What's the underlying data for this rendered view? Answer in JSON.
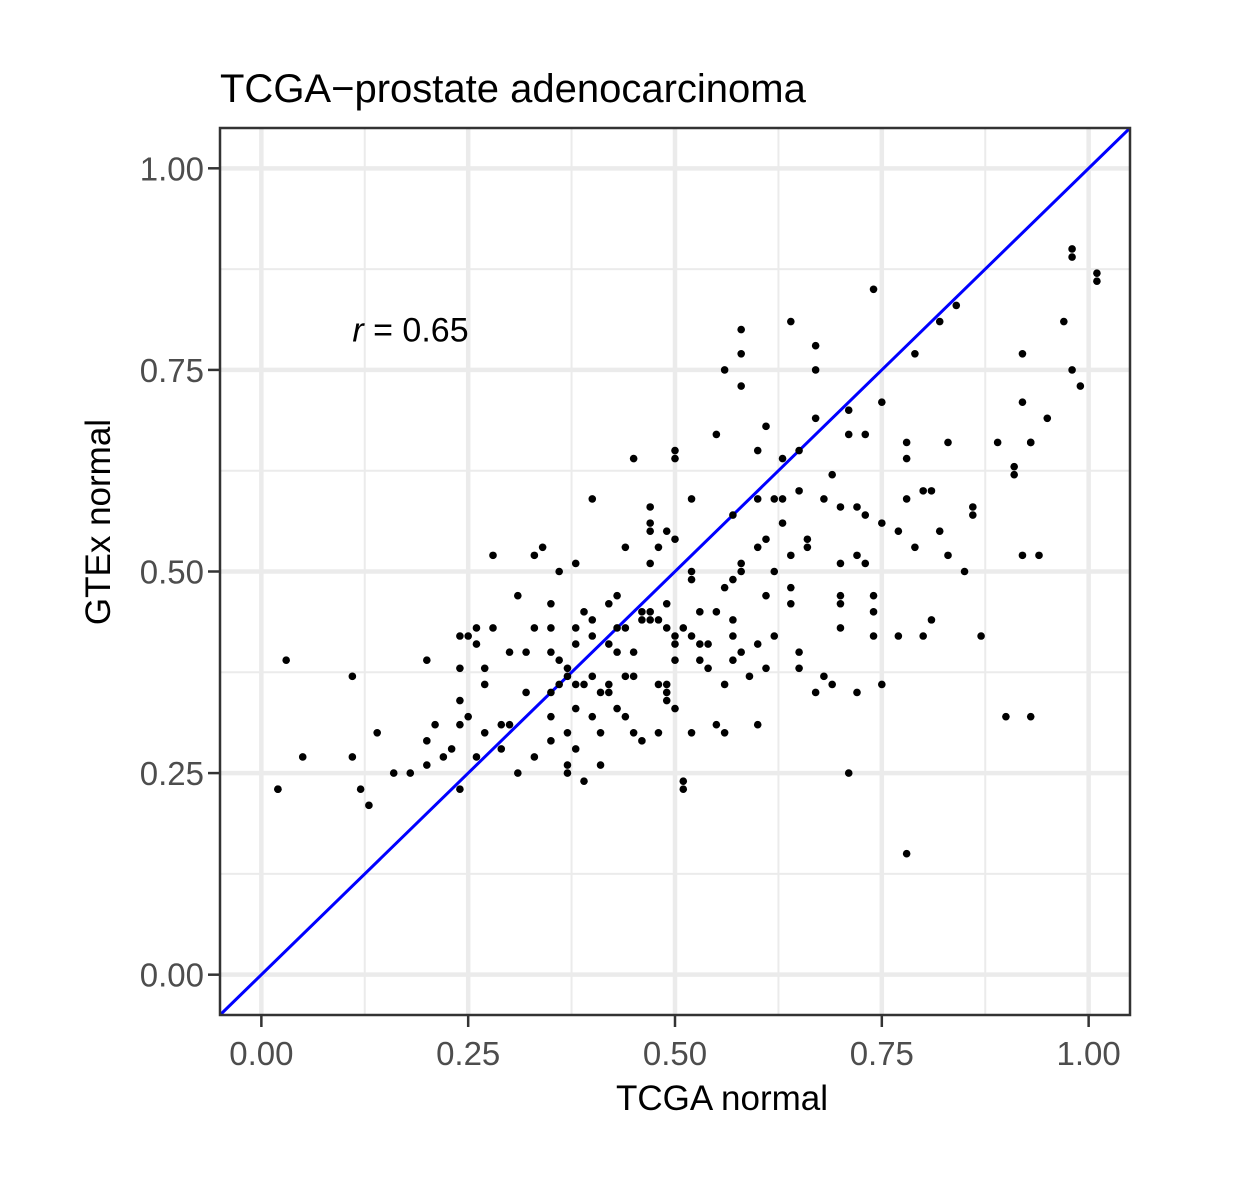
{
  "chart_data": {
    "type": "scatter",
    "title": "TCGA−prostate adenocarcinoma",
    "xlabel": "TCGA normal",
    "ylabel": "GTEx normal",
    "xlim": [
      -0.05,
      1.05
    ],
    "ylim": [
      -0.05,
      1.05
    ],
    "x_ticks": [
      "0.00",
      "0.25",
      "0.50",
      "0.75",
      "1.00"
    ],
    "y_ticks": [
      "0.00",
      "0.25",
      "0.50",
      "0.75",
      "1.00"
    ],
    "grid": true,
    "reference_line": {
      "slope": 1,
      "intercept": 0,
      "color": "#0000ff"
    },
    "annotation": {
      "var": "r",
      "text": " = 0.65",
      "x": 0.11,
      "y": 0.8
    },
    "point_color": "#000000",
    "points": [
      [
        0.02,
        0.23
      ],
      [
        0.02,
        0.23
      ],
      [
        0.03,
        0.39
      ],
      [
        0.05,
        0.27
      ],
      [
        0.11,
        0.37
      ],
      [
        0.11,
        0.27
      ],
      [
        0.12,
        0.23
      ],
      [
        0.13,
        0.21
      ],
      [
        0.14,
        0.3
      ],
      [
        0.16,
        0.25
      ],
      [
        0.18,
        0.25
      ],
      [
        0.2,
        0.39
      ],
      [
        0.2,
        0.29
      ],
      [
        0.2,
        0.26
      ],
      [
        0.21,
        0.31
      ],
      [
        0.22,
        0.27
      ],
      [
        0.23,
        0.28
      ],
      [
        0.24,
        0.42
      ],
      [
        0.24,
        0.38
      ],
      [
        0.24,
        0.34
      ],
      [
        0.24,
        0.31
      ],
      [
        0.24,
        0.23
      ],
      [
        0.25,
        0.42
      ],
      [
        0.25,
        0.32
      ],
      [
        0.26,
        0.43
      ],
      [
        0.26,
        0.41
      ],
      [
        0.26,
        0.27
      ],
      [
        0.27,
        0.38
      ],
      [
        0.27,
        0.36
      ],
      [
        0.27,
        0.3
      ],
      [
        0.28,
        0.52
      ],
      [
        0.28,
        0.43
      ],
      [
        0.29,
        0.31
      ],
      [
        0.29,
        0.28
      ],
      [
        0.3,
        0.31
      ],
      [
        0.3,
        0.4
      ],
      [
        0.31,
        0.47
      ],
      [
        0.31,
        0.25
      ],
      [
        0.32,
        0.4
      ],
      [
        0.32,
        0.35
      ],
      [
        0.33,
        0.52
      ],
      [
        0.33,
        0.43
      ],
      [
        0.33,
        0.27
      ],
      [
        0.34,
        0.53
      ],
      [
        0.35,
        0.46
      ],
      [
        0.35,
        0.43
      ],
      [
        0.35,
        0.4
      ],
      [
        0.35,
        0.35
      ],
      [
        0.35,
        0.32
      ],
      [
        0.35,
        0.29
      ],
      [
        0.36,
        0.5
      ],
      [
        0.36,
        0.39
      ],
      [
        0.36,
        0.36
      ],
      [
        0.37,
        0.38
      ],
      [
        0.37,
        0.37
      ],
      [
        0.37,
        0.3
      ],
      [
        0.37,
        0.26
      ],
      [
        0.37,
        0.25
      ],
      [
        0.38,
        0.51
      ],
      [
        0.38,
        0.43
      ],
      [
        0.38,
        0.41
      ],
      [
        0.38,
        0.36
      ],
      [
        0.38,
        0.33
      ],
      [
        0.38,
        0.28
      ],
      [
        0.39,
        0.45
      ],
      [
        0.39,
        0.36
      ],
      [
        0.39,
        0.24
      ],
      [
        0.4,
        0.59
      ],
      [
        0.4,
        0.44
      ],
      [
        0.4,
        0.42
      ],
      [
        0.4,
        0.37
      ],
      [
        0.4,
        0.32
      ],
      [
        0.41,
        0.35
      ],
      [
        0.41,
        0.3
      ],
      [
        0.41,
        0.26
      ],
      [
        0.42,
        0.46
      ],
      [
        0.42,
        0.41
      ],
      [
        0.42,
        0.36
      ],
      [
        0.42,
        0.35
      ],
      [
        0.43,
        0.47
      ],
      [
        0.43,
        0.43
      ],
      [
        0.43,
        0.4
      ],
      [
        0.43,
        0.33
      ],
      [
        0.44,
        0.53
      ],
      [
        0.44,
        0.43
      ],
      [
        0.44,
        0.37
      ],
      [
        0.44,
        0.32
      ],
      [
        0.45,
        0.64
      ],
      [
        0.45,
        0.4
      ],
      [
        0.45,
        0.37
      ],
      [
        0.45,
        0.3
      ],
      [
        0.46,
        0.45
      ],
      [
        0.46,
        0.44
      ],
      [
        0.46,
        0.29
      ],
      [
        0.47,
        0.58
      ],
      [
        0.47,
        0.56
      ],
      [
        0.47,
        0.55
      ],
      [
        0.47,
        0.51
      ],
      [
        0.47,
        0.45
      ],
      [
        0.47,
        0.44
      ],
      [
        0.48,
        0.53
      ],
      [
        0.48,
        0.44
      ],
      [
        0.48,
        0.36
      ],
      [
        0.48,
        0.3
      ],
      [
        0.49,
        0.55
      ],
      [
        0.49,
        0.46
      ],
      [
        0.49,
        0.43
      ],
      [
        0.49,
        0.36
      ],
      [
        0.49,
        0.35
      ],
      [
        0.49,
        0.34
      ],
      [
        0.5,
        0.65
      ],
      [
        0.5,
        0.64
      ],
      [
        0.5,
        0.54
      ],
      [
        0.5,
        0.42
      ],
      [
        0.5,
        0.41
      ],
      [
        0.5,
        0.39
      ],
      [
        0.5,
        0.33
      ],
      [
        0.51,
        0.24
      ],
      [
        0.51,
        0.23
      ],
      [
        0.51,
        0.43
      ],
      [
        0.52,
        0.59
      ],
      [
        0.52,
        0.5
      ],
      [
        0.52,
        0.49
      ],
      [
        0.52,
        0.42
      ],
      [
        0.52,
        0.3
      ],
      [
        0.53,
        0.45
      ],
      [
        0.53,
        0.41
      ],
      [
        0.53,
        0.39
      ],
      [
        0.54,
        0.41
      ],
      [
        0.54,
        0.38
      ],
      [
        0.55,
        0.67
      ],
      [
        0.55,
        0.45
      ],
      [
        0.55,
        0.31
      ],
      [
        0.56,
        0.75
      ],
      [
        0.56,
        0.48
      ],
      [
        0.56,
        0.36
      ],
      [
        0.56,
        0.3
      ],
      [
        0.57,
        0.57
      ],
      [
        0.57,
        0.49
      ],
      [
        0.57,
        0.44
      ],
      [
        0.57,
        0.42
      ],
      [
        0.57,
        0.39
      ],
      [
        0.58,
        0.8
      ],
      [
        0.58,
        0.77
      ],
      [
        0.58,
        0.73
      ],
      [
        0.58,
        0.51
      ],
      [
        0.58,
        0.5
      ],
      [
        0.58,
        0.4
      ],
      [
        0.59,
        0.37
      ],
      [
        0.6,
        0.65
      ],
      [
        0.6,
        0.59
      ],
      [
        0.6,
        0.53
      ],
      [
        0.6,
        0.41
      ],
      [
        0.6,
        0.31
      ],
      [
        0.61,
        0.68
      ],
      [
        0.61,
        0.54
      ],
      [
        0.61,
        0.47
      ],
      [
        0.61,
        0.38
      ],
      [
        0.62,
        0.59
      ],
      [
        0.62,
        0.5
      ],
      [
        0.62,
        0.42
      ],
      [
        0.63,
        0.64
      ],
      [
        0.63,
        0.59
      ],
      [
        0.63,
        0.56
      ],
      [
        0.64,
        0.81
      ],
      [
        0.64,
        0.52
      ],
      [
        0.64,
        0.48
      ],
      [
        0.64,
        0.46
      ],
      [
        0.65,
        0.6
      ],
      [
        0.65,
        0.65
      ],
      [
        0.65,
        0.4
      ],
      [
        0.65,
        0.38
      ],
      [
        0.66,
        0.54
      ],
      [
        0.66,
        0.53
      ],
      [
        0.67,
        0.78
      ],
      [
        0.67,
        0.75
      ],
      [
        0.67,
        0.69
      ],
      [
        0.67,
        0.35
      ],
      [
        0.68,
        0.59
      ],
      [
        0.68,
        0.37
      ],
      [
        0.69,
        0.36
      ],
      [
        0.69,
        0.62
      ],
      [
        0.7,
        0.58
      ],
      [
        0.7,
        0.51
      ],
      [
        0.7,
        0.47
      ],
      [
        0.7,
        0.46
      ],
      [
        0.7,
        0.43
      ],
      [
        0.71,
        0.7
      ],
      [
        0.71,
        0.67
      ],
      [
        0.71,
        0.25
      ],
      [
        0.72,
        0.58
      ],
      [
        0.72,
        0.52
      ],
      [
        0.72,
        0.35
      ],
      [
        0.73,
        0.67
      ],
      [
        0.73,
        0.57
      ],
      [
        0.73,
        0.51
      ],
      [
        0.74,
        0.85
      ],
      [
        0.74,
        0.47
      ],
      [
        0.74,
        0.45
      ],
      [
        0.74,
        0.42
      ],
      [
        0.75,
        0.71
      ],
      [
        0.75,
        0.56
      ],
      [
        0.75,
        0.36
      ],
      [
        0.77,
        0.55
      ],
      [
        0.77,
        0.42
      ],
      [
        0.78,
        0.66
      ],
      [
        0.78,
        0.64
      ],
      [
        0.78,
        0.59
      ],
      [
        0.78,
        0.15
      ],
      [
        0.79,
        0.77
      ],
      [
        0.79,
        0.53
      ],
      [
        0.8,
        0.6
      ],
      [
        0.8,
        0.42
      ],
      [
        0.81,
        0.6
      ],
      [
        0.81,
        0.44
      ],
      [
        0.82,
        0.55
      ],
      [
        0.82,
        0.81
      ],
      [
        0.83,
        0.66
      ],
      [
        0.83,
        0.52
      ],
      [
        0.84,
        0.83
      ],
      [
        0.85,
        0.5
      ],
      [
        0.86,
        0.58
      ],
      [
        0.86,
        0.57
      ],
      [
        0.87,
        0.42
      ],
      [
        0.89,
        0.66
      ],
      [
        0.9,
        0.32
      ],
      [
        0.91,
        0.63
      ],
      [
        0.91,
        0.62
      ],
      [
        0.92,
        0.52
      ],
      [
        0.92,
        0.71
      ],
      [
        0.92,
        0.77
      ],
      [
        0.93,
        0.66
      ],
      [
        0.93,
        0.66
      ],
      [
        0.93,
        0.32
      ],
      [
        0.94,
        0.52
      ],
      [
        0.95,
        0.69
      ],
      [
        0.97,
        0.81
      ],
      [
        0.98,
        0.9
      ],
      [
        0.98,
        0.89
      ],
      [
        0.98,
        0.75
      ],
      [
        0.99,
        0.73
      ],
      [
        1.01,
        0.87
      ],
      [
        1.01,
        0.86
      ]
    ]
  }
}
